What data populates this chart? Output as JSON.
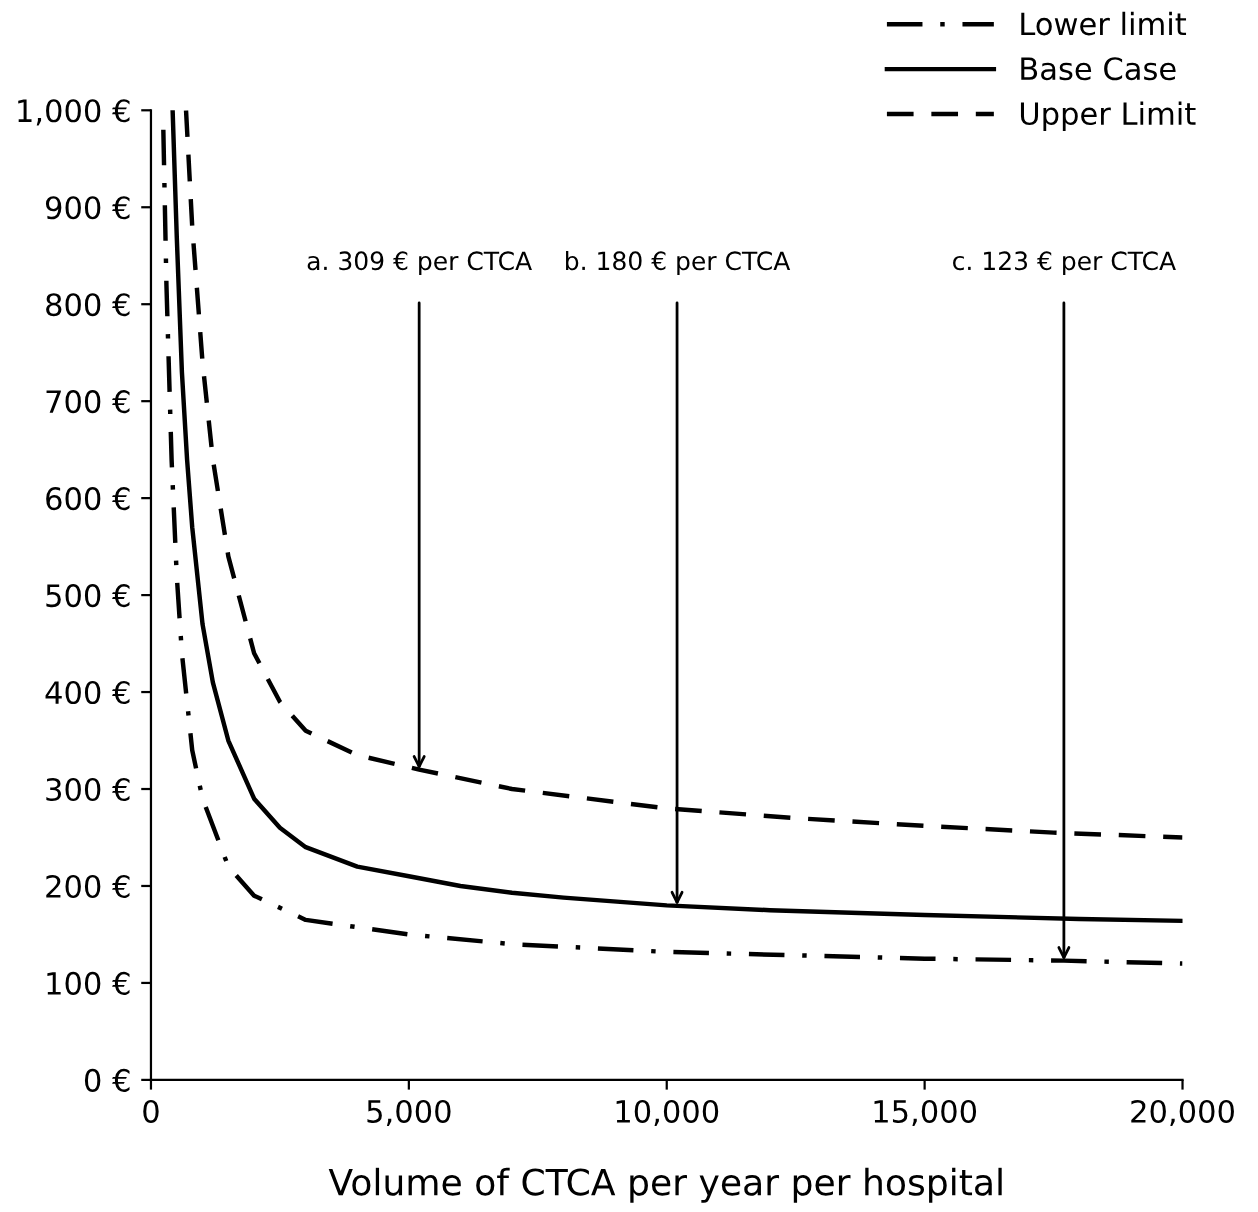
{
  "chart_data": {
    "type": "line",
    "xlabel": "Volume of CTCA per year per hospital",
    "xlim": [
      0,
      20000
    ],
    "xticks": [
      0,
      {
        "value": 5000,
        "label": "5,000"
      },
      {
        "value": 10000,
        "label": "10,000"
      },
      {
        "value": 15000,
        "label": "15,000"
      },
      {
        "value": 20000,
        "label": "20,000"
      }
    ],
    "ylim": [
      0,
      1000
    ],
    "yticks": [
      {
        "value": 0,
        "label": "0 €"
      },
      {
        "value": 100,
        "label": "100 €"
      },
      {
        "value": 200,
        "label": "200 €"
      },
      {
        "value": 300,
        "label": "300 €"
      },
      {
        "value": 400,
        "label": "400 €"
      },
      {
        "value": 500,
        "label": "500 €"
      },
      {
        "value": 600,
        "label": "600 €"
      },
      {
        "value": 700,
        "label": "700 €"
      },
      {
        "value": 800,
        "label": "800 €"
      },
      {
        "value": 900,
        "label": "900 €"
      },
      {
        "value": 1000,
        "label": "1,000 €"
      }
    ],
    "grid": false,
    "legend": "top right",
    "marker": "none",
    "series": [
      {
        "name": "Lower limit",
        "color": "#000000",
        "line_style": "dashdot",
        "x": [
          240,
          300,
          400,
          500,
          600,
          800,
          1000,
          1500,
          2000,
          3000,
          5000,
          7000,
          10000,
          15000,
          17700,
          20000
        ],
        "values": [
          980,
          820,
          640,
          520,
          440,
          340,
          290,
          220,
          190,
          165,
          150,
          140,
          132,
          125,
          123,
          120
        ]
      },
      {
        "name": "Base Case",
        "color": "#000000",
        "line_style": "solid",
        "x": [
          420,
          500,
          600,
          700,
          800,
          1000,
          1200,
          1500,
          2000,
          2500,
          3000,
          4000,
          5000,
          6000,
          7000,
          8000,
          10000,
          12000,
          15000,
          18000,
          20000
        ],
        "values": [
          1000,
          870,
          730,
          640,
          570,
          470,
          410,
          350,
          290,
          260,
          240,
          220,
          210,
          200,
          193,
          188,
          180,
          175,
          170,
          166,
          164
        ]
      },
      {
        "name": "Upper Limit",
        "color": "#000000",
        "line_style": "dashed",
        "x": [
          680,
          800,
          1000,
          1200,
          1500,
          2000,
          2500,
          3000,
          4000,
          5200,
          7000,
          10000,
          12500,
          15000,
          17500,
          20000
        ],
        "values": [
          1000,
          880,
          740,
          640,
          540,
          440,
          390,
          360,
          335,
          320,
          300,
          280,
          270,
          262,
          255,
          250
        ]
      }
    ],
    "annotations": [
      {
        "text": "a. 309 € per CTCA",
        "x": 5200,
        "y": 320
      },
      {
        "text": "b. 180 € per CTCA",
        "x": 10200,
        "y": 180
      },
      {
        "text": "c. 123 € per CTCA",
        "x": 17700,
        "y": 123
      }
    ]
  }
}
